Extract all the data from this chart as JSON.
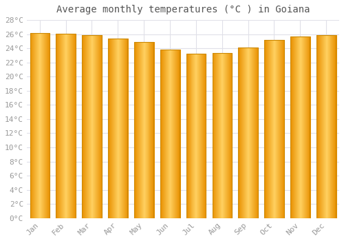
{
  "title": "Average monthly temperatures (°C ) in Goiana",
  "months": [
    "Jan",
    "Feb",
    "Mar",
    "Apr",
    "May",
    "Jun",
    "Jul",
    "Aug",
    "Sep",
    "Oct",
    "Nov",
    "Dec"
  ],
  "values": [
    26.2,
    26.1,
    25.9,
    25.4,
    24.9,
    23.8,
    23.2,
    23.3,
    24.1,
    25.2,
    25.7,
    25.9
  ],
  "bar_color_center": "#FFB800",
  "bar_color_edge": "#F5A000",
  "bar_highlight": "#FFD060",
  "bar_border_color": "#CC8800",
  "background_color": "#FFFFFF",
  "grid_color": "#E0E0E8",
  "text_color": "#999999",
  "ylim": [
    0,
    28
  ],
  "yticks": [
    0,
    2,
    4,
    6,
    8,
    10,
    12,
    14,
    16,
    18,
    20,
    22,
    24,
    26,
    28
  ],
  "title_fontsize": 10,
  "tick_fontsize": 8
}
